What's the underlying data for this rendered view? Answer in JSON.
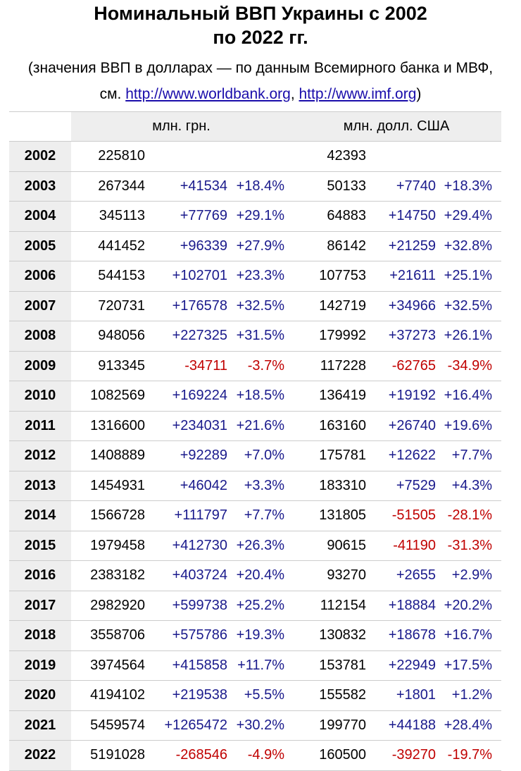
{
  "title": {
    "line1": "Номинальный ВВП Украины с 2002",
    "line2": "по 2022 гг."
  },
  "subtitle": {
    "line1": "(значения ВВП в долларах — по данным Всемирного банка и МВФ,",
    "prefix": "см. ",
    "link1": "http://www.worldbank.org",
    "sep": ", ",
    "link2": "http://www.imf.org",
    "suffix": ")"
  },
  "table": {
    "header_uah": "млн. грн.",
    "header_usd": "млн. долл. США",
    "rows": [
      {
        "year": "2002",
        "uah": "225810",
        "uah_delta": "",
        "uah_pct": "",
        "usd": "42393",
        "usd_delta": "",
        "usd_pct": ""
      },
      {
        "year": "2003",
        "uah": "267344",
        "uah_delta": "+41534",
        "uah_pct": "+18.4%",
        "usd": "50133",
        "usd_delta": "+7740",
        "usd_pct": "+18.3%"
      },
      {
        "year": "2004",
        "uah": "345113",
        "uah_delta": "+77769",
        "uah_pct": "+29.1%",
        "usd": "64883",
        "usd_delta": "+14750",
        "usd_pct": "+29.4%"
      },
      {
        "year": "2005",
        "uah": "441452",
        "uah_delta": "+96339",
        "uah_pct": "+27.9%",
        "usd": "86142",
        "usd_delta": "+21259",
        "usd_pct": "+32.8%"
      },
      {
        "year": "2006",
        "uah": "544153",
        "uah_delta": "+102701",
        "uah_pct": "+23.3%",
        "usd": "107753",
        "usd_delta": "+21611",
        "usd_pct": "+25.1%"
      },
      {
        "year": "2007",
        "uah": "720731",
        "uah_delta": "+176578",
        "uah_pct": "+32.5%",
        "usd": "142719",
        "usd_delta": "+34966",
        "usd_pct": "+32.5%"
      },
      {
        "year": "2008",
        "uah": "948056",
        "uah_delta": "+227325",
        "uah_pct": "+31.5%",
        "usd": "179992",
        "usd_delta": "+37273",
        "usd_pct": "+26.1%"
      },
      {
        "year": "2009",
        "uah": "913345",
        "uah_delta": "-34711",
        "uah_pct": "-3.7%",
        "usd": "117228",
        "usd_delta": "-62765",
        "usd_pct": "-34.9%"
      },
      {
        "year": "2010",
        "uah": "1082569",
        "uah_delta": "+169224",
        "uah_pct": "+18.5%",
        "usd": "136419",
        "usd_delta": "+19192",
        "usd_pct": "+16.4%"
      },
      {
        "year": "2011",
        "uah": "1316600",
        "uah_delta": "+234031",
        "uah_pct": "+21.6%",
        "usd": "163160",
        "usd_delta": "+26740",
        "usd_pct": "+19.6%"
      },
      {
        "year": "2012",
        "uah": "1408889",
        "uah_delta": "+92289",
        "uah_pct": "+7.0%",
        "usd": "175781",
        "usd_delta": "+12622",
        "usd_pct": "+7.7%"
      },
      {
        "year": "2013",
        "uah": "1454931",
        "uah_delta": "+46042",
        "uah_pct": "+3.3%",
        "usd": "183310",
        "usd_delta": "+7529",
        "usd_pct": "+4.3%"
      },
      {
        "year": "2014",
        "uah": "1566728",
        "uah_delta": "+111797",
        "uah_pct": "+7.7%",
        "usd": "131805",
        "usd_delta": "-51505",
        "usd_pct": "-28.1%"
      },
      {
        "year": "2015",
        "uah": "1979458",
        "uah_delta": "+412730",
        "uah_pct": "+26.3%",
        "usd": "90615",
        "usd_delta": "-41190",
        "usd_pct": "-31.3%"
      },
      {
        "year": "2016",
        "uah": "2383182",
        "uah_delta": "+403724",
        "uah_pct": "+20.4%",
        "usd": "93270",
        "usd_delta": "+2655",
        "usd_pct": "+2.9%"
      },
      {
        "year": "2017",
        "uah": "2982920",
        "uah_delta": "+599738",
        "uah_pct": "+25.2%",
        "usd": "112154",
        "usd_delta": "+18884",
        "usd_pct": "+20.2%"
      },
      {
        "year": "2018",
        "uah": "3558706",
        "uah_delta": "+575786",
        "uah_pct": "+19.3%",
        "usd": "130832",
        "usd_delta": "+18678",
        "usd_pct": "+16.7%"
      },
      {
        "year": "2019",
        "uah": "3974564",
        "uah_delta": "+415858",
        "uah_pct": "+11.7%",
        "usd": "153781",
        "usd_delta": "+22949",
        "usd_pct": "+17.5%"
      },
      {
        "year": "2020",
        "uah": "4194102",
        "uah_delta": "+219538",
        "uah_pct": "+5.5%",
        "usd": "155582",
        "usd_delta": "+1801",
        "usd_pct": "+1.2%"
      },
      {
        "year": "2021",
        "uah": "5459574",
        "uah_delta": "+1265472",
        "uah_pct": "+30.2%",
        "usd": "199770",
        "usd_delta": "+44188",
        "usd_pct": "+28.4%"
      },
      {
        "year": "2022",
        "uah": "5191028",
        "uah_delta": "-268546",
        "uah_pct": "-4.9%",
        "usd": "160500",
        "usd_delta": "-39270",
        "usd_pct": "-19.7%"
      }
    ]
  },
  "colors": {
    "positive": "#1a1a8c",
    "negative": "#c00000",
    "header_bg": "#eeeeee",
    "link": "#1a0dab"
  }
}
